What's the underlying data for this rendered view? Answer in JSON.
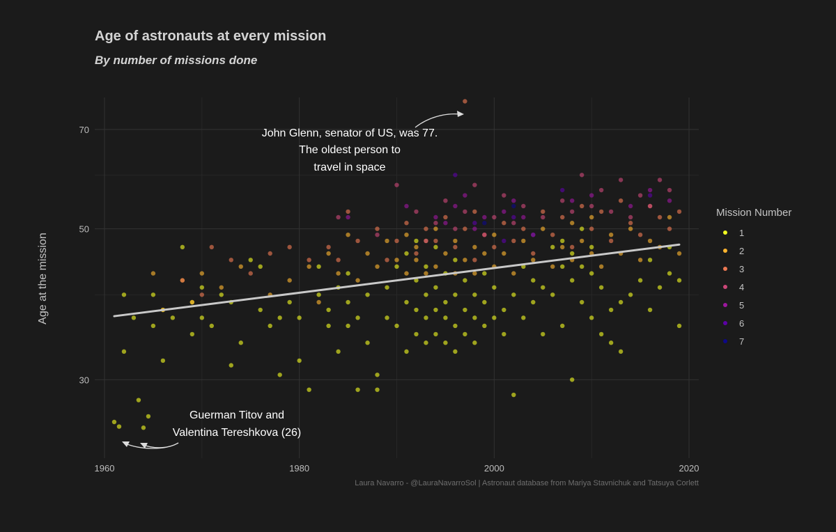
{
  "chart_data": {
    "type": "scatter",
    "title": "Age of astronauts at every mission",
    "subtitle": "By number of missions done",
    "xlabel": "",
    "ylabel": "Age at the mission",
    "x_ticks": [
      1960,
      1980,
      2000,
      2020
    ],
    "y_ticks": [
      30,
      50,
      70
    ],
    "xlim": [
      1959,
      2021
    ],
    "ylim": [
      23,
      78
    ],
    "y_scale": "log",
    "grid": true,
    "legend": {
      "title": "Mission Number",
      "position": "right",
      "entries": [
        {
          "label": "1",
          "color": "#f0f921"
        },
        {
          "label": "2",
          "color": "#fdb42f"
        },
        {
          "label": "3",
          "color": "#ed7953"
        },
        {
          "label": "4",
          "color": "#cc4778"
        },
        {
          "label": "5",
          "color": "#9c179e"
        },
        {
          "label": "6",
          "color": "#5c01a6"
        },
        {
          "label": "7",
          "color": "#0d0887"
        }
      ]
    },
    "series": [
      {
        "name": "1",
        "color": "#f0f921",
        "points": [
          [
            1961,
            26
          ],
          [
            1961.5,
            25.6
          ],
          [
            1962,
            40
          ],
          [
            1962,
            33
          ],
          [
            1963,
            37
          ],
          [
            1963.5,
            28
          ],
          [
            1964,
            25.5
          ],
          [
            1964.5,
            26.5
          ],
          [
            1965,
            40
          ],
          [
            1965,
            36
          ],
          [
            1966,
            32
          ],
          [
            1966,
            38
          ],
          [
            1967,
            37
          ],
          [
            1968,
            47
          ],
          [
            1969,
            39
          ],
          [
            1969,
            35
          ],
          [
            1970,
            41
          ],
          [
            1970,
            37
          ],
          [
            1971,
            36
          ],
          [
            1972,
            40
          ],
          [
            1973,
            39
          ],
          [
            1973,
            31.5
          ],
          [
            1974,
            34
          ],
          [
            1975,
            45
          ],
          [
            1976,
            38
          ],
          [
            1976,
            44
          ],
          [
            1977,
            36
          ],
          [
            1978,
            30.5
          ],
          [
            1978,
            37
          ],
          [
            1979,
            39
          ],
          [
            1980,
            32
          ],
          [
            1980,
            37
          ],
          [
            1981,
            29
          ],
          [
            1982,
            44
          ],
          [
            1982,
            40
          ],
          [
            1983,
            36
          ],
          [
            1983,
            38
          ],
          [
            1984,
            33
          ],
          [
            1984,
            41
          ],
          [
            1985,
            36
          ],
          [
            1985,
            39
          ],
          [
            1985,
            43
          ],
          [
            1986,
            29
          ],
          [
            1986,
            37
          ],
          [
            1987,
            40
          ],
          [
            1987,
            34
          ],
          [
            1988,
            29
          ],
          [
            1988,
            30.5
          ],
          [
            1989,
            37
          ],
          [
            1989,
            41
          ],
          [
            1990,
            36
          ],
          [
            1990,
            44
          ],
          [
            1991,
            33
          ],
          [
            1991,
            39
          ],
          [
            1991,
            46
          ],
          [
            1992,
            35
          ],
          [
            1992,
            38
          ],
          [
            1992,
            42
          ],
          [
            1992,
            48
          ],
          [
            1993,
            34
          ],
          [
            1993,
            37
          ],
          [
            1993,
            40
          ],
          [
            1993,
            44
          ],
          [
            1994,
            35
          ],
          [
            1994,
            38
          ],
          [
            1994,
            41
          ],
          [
            1994,
            47
          ],
          [
            1995,
            34
          ],
          [
            1995,
            37
          ],
          [
            1995,
            39
          ],
          [
            1995,
            43
          ],
          [
            1996,
            33
          ],
          [
            1996,
            36
          ],
          [
            1996,
            40
          ],
          [
            1996,
            45
          ],
          [
            1997,
            35
          ],
          [
            1997,
            38
          ],
          [
            1997,
            42
          ],
          [
            1998,
            34
          ],
          [
            1998,
            37
          ],
          [
            1998,
            40
          ],
          [
            1999,
            36
          ],
          [
            1999,
            39
          ],
          [
            1999,
            43
          ],
          [
            2000,
            37
          ],
          [
            2000,
            41
          ],
          [
            2001,
            38
          ],
          [
            2001,
            35
          ],
          [
            2002,
            28.5
          ],
          [
            2002,
            40
          ],
          [
            2003,
            37
          ],
          [
            2003,
            44
          ],
          [
            2004,
            39
          ],
          [
            2004,
            42
          ],
          [
            2005,
            35
          ],
          [
            2005,
            41
          ],
          [
            2006,
            40
          ],
          [
            2006,
            47
          ],
          [
            2007,
            36
          ],
          [
            2007,
            44
          ],
          [
            2007,
            48
          ],
          [
            2008,
            30
          ],
          [
            2008,
            42
          ],
          [
            2008,
            46
          ],
          [
            2009,
            39
          ],
          [
            2009,
            44
          ],
          [
            2009,
            50
          ],
          [
            2010,
            37
          ],
          [
            2010,
            43
          ],
          [
            2010,
            47
          ],
          [
            2011,
            35
          ],
          [
            2011,
            41
          ],
          [
            2012,
            38
          ],
          [
            2012,
            34
          ],
          [
            2013,
            39
          ],
          [
            2013,
            33
          ],
          [
            2014,
            40
          ],
          [
            2015,
            42
          ],
          [
            2016,
            38
          ],
          [
            2016,
            45
          ],
          [
            2017,
            41
          ],
          [
            2018,
            43
          ],
          [
            2018,
            47
          ],
          [
            2019,
            36
          ],
          [
            2019,
            42
          ]
        ]
      },
      {
        "name": "2",
        "color": "#fdb42f",
        "points": [
          [
            1965,
            43
          ],
          [
            1966,
            38
          ],
          [
            1968,
            42
          ],
          [
            1969,
            39
          ],
          [
            1970,
            43
          ],
          [
            1972,
            41
          ],
          [
            1974,
            44
          ],
          [
            1977,
            40
          ],
          [
            1979,
            42
          ],
          [
            1981,
            44
          ],
          [
            1982,
            39
          ],
          [
            1983,
            46
          ],
          [
            1984,
            43
          ],
          [
            1985,
            49
          ],
          [
            1986,
            42
          ],
          [
            1987,
            46
          ],
          [
            1988,
            44
          ],
          [
            1989,
            48
          ],
          [
            1990,
            45
          ],
          [
            1991,
            43
          ],
          [
            1991,
            49
          ],
          [
            1992,
            45
          ],
          [
            1992,
            47
          ],
          [
            1993,
            43
          ],
          [
            1993,
            48
          ],
          [
            1994,
            44
          ],
          [
            1994,
            50
          ],
          [
            1995,
            46
          ],
          [
            1996,
            43
          ],
          [
            1996,
            48
          ],
          [
            1997,
            45
          ],
          [
            1998,
            47
          ],
          [
            1998,
            43
          ],
          [
            1999,
            46
          ],
          [
            2000,
            44
          ],
          [
            2000,
            49
          ],
          [
            2001,
            46
          ],
          [
            2002,
            43
          ],
          [
            2003,
            48
          ],
          [
            2004,
            45
          ],
          [
            2005,
            50
          ],
          [
            2006,
            44
          ],
          [
            2007,
            47
          ],
          [
            2008,
            51
          ],
          [
            2008,
            45
          ],
          [
            2009,
            48
          ],
          [
            2010,
            46
          ],
          [
            2010,
            52
          ],
          [
            2011,
            44
          ],
          [
            2012,
            49
          ],
          [
            2013,
            46
          ],
          [
            2014,
            50
          ],
          [
            2015,
            45
          ],
          [
            2016,
            48
          ],
          [
            2017,
            47
          ],
          [
            2018,
            52
          ],
          [
            2019,
            46
          ]
        ]
      },
      {
        "name": "3",
        "color": "#ed7953",
        "points": [
          [
            1968,
            42
          ],
          [
            1970,
            40
          ],
          [
            1971,
            47
          ],
          [
            1973,
            45
          ],
          [
            1975,
            43
          ],
          [
            1977,
            46
          ],
          [
            1979,
            47
          ],
          [
            1981,
            45
          ],
          [
            1983,
            47
          ],
          [
            1984,
            45
          ],
          [
            1985,
            53
          ],
          [
            1986,
            48
          ],
          [
            1988,
            50
          ],
          [
            1989,
            45
          ],
          [
            1990,
            48
          ],
          [
            1991,
            51
          ],
          [
            1992,
            46
          ],
          [
            1993,
            50
          ],
          [
            1994,
            48
          ],
          [
            1995,
            52
          ],
          [
            1996,
            47
          ],
          [
            1997,
            50
          ],
          [
            1998,
            45
          ],
          [
            1998,
            53
          ],
          [
            1999,
            49
          ],
          [
            2000,
            47
          ],
          [
            2001,
            51
          ],
          [
            2002,
            48
          ],
          [
            2003,
            50
          ],
          [
            2004,
            46
          ],
          [
            2005,
            53
          ],
          [
            2006,
            49
          ],
          [
            2007,
            52
          ],
          [
            2008,
            47
          ],
          [
            2009,
            54
          ],
          [
            2010,
            50
          ],
          [
            2011,
            53
          ],
          [
            2012,
            48
          ],
          [
            2013,
            55
          ],
          [
            2014,
            51
          ],
          [
            2015,
            49
          ],
          [
            2016,
            54
          ],
          [
            2017,
            52
          ],
          [
            2018,
            50
          ],
          [
            2019,
            53
          ],
          [
            1997,
            77
          ]
        ]
      },
      {
        "name": "4",
        "color": "#cc4778",
        "points": [
          [
            1984,
            52
          ],
          [
            1988,
            49
          ],
          [
            1990,
            58
          ],
          [
            1992,
            53
          ],
          [
            1993,
            48
          ],
          [
            1994,
            51
          ],
          [
            1995,
            55
          ],
          [
            1996,
            50
          ],
          [
            1997,
            53
          ],
          [
            1998,
            58
          ],
          [
            1999,
            49
          ],
          [
            2000,
            52
          ],
          [
            2001,
            56
          ],
          [
            2002,
            51
          ],
          [
            2003,
            54
          ],
          [
            2004,
            49
          ],
          [
            2005,
            52
          ],
          [
            2007,
            55
          ],
          [
            2008,
            53
          ],
          [
            2009,
            60
          ],
          [
            2010,
            54
          ],
          [
            2011,
            57
          ],
          [
            2012,
            53
          ],
          [
            2013,
            59
          ],
          [
            2014,
            52
          ],
          [
            2015,
            56
          ],
          [
            2016,
            54
          ],
          [
            2017,
            59
          ],
          [
            2018,
            57
          ]
        ]
      },
      {
        "name": "5",
        "color": "#9c179e",
        "points": [
          [
            1985,
            52
          ],
          [
            1991,
            54
          ],
          [
            1994,
            52
          ],
          [
            1995,
            51
          ],
          [
            1996,
            54
          ],
          [
            1997,
            56
          ],
          [
            1998,
            50
          ],
          [
            1999,
            52
          ],
          [
            2001,
            53
          ],
          [
            2002,
            55
          ],
          [
            2003,
            52
          ],
          [
            2008,
            55
          ],
          [
            2010,
            56
          ],
          [
            2014,
            54
          ],
          [
            2016,
            57
          ],
          [
            2018,
            55
          ]
        ]
      },
      {
        "name": "6",
        "color": "#5c01a6",
        "points": [
          [
            1996,
            60
          ],
          [
            1998,
            51
          ],
          [
            2001,
            48
          ],
          [
            2002,
            52
          ],
          [
            2004,
            49
          ],
          [
            2007,
            57
          ],
          [
            2016,
            56
          ]
        ]
      },
      {
        "name": "7",
        "color": "#0d0887",
        "points": [
          [
            1999,
            51
          ],
          [
            2002,
            54
          ]
        ]
      }
    ],
    "trend_line": {
      "x": [
        1961,
        2019
      ],
      "y": [
        37.2,
        47.4
      ],
      "color": "#c9c9c9"
    },
    "annotations": [
      {
        "lines": [
          "John Glenn, senator of US, was 77.",
          "The oldest person to",
          "travel in space"
        ]
      },
      {
        "lines": [
          "Guerman Titov and",
          "Valentina Tereshkova (26)"
        ]
      }
    ],
    "caption": "Laura Navarro - @LauraNavarroSol | Astronaut database from Mariya Stavnichuk and Tatsuya Corlett"
  }
}
